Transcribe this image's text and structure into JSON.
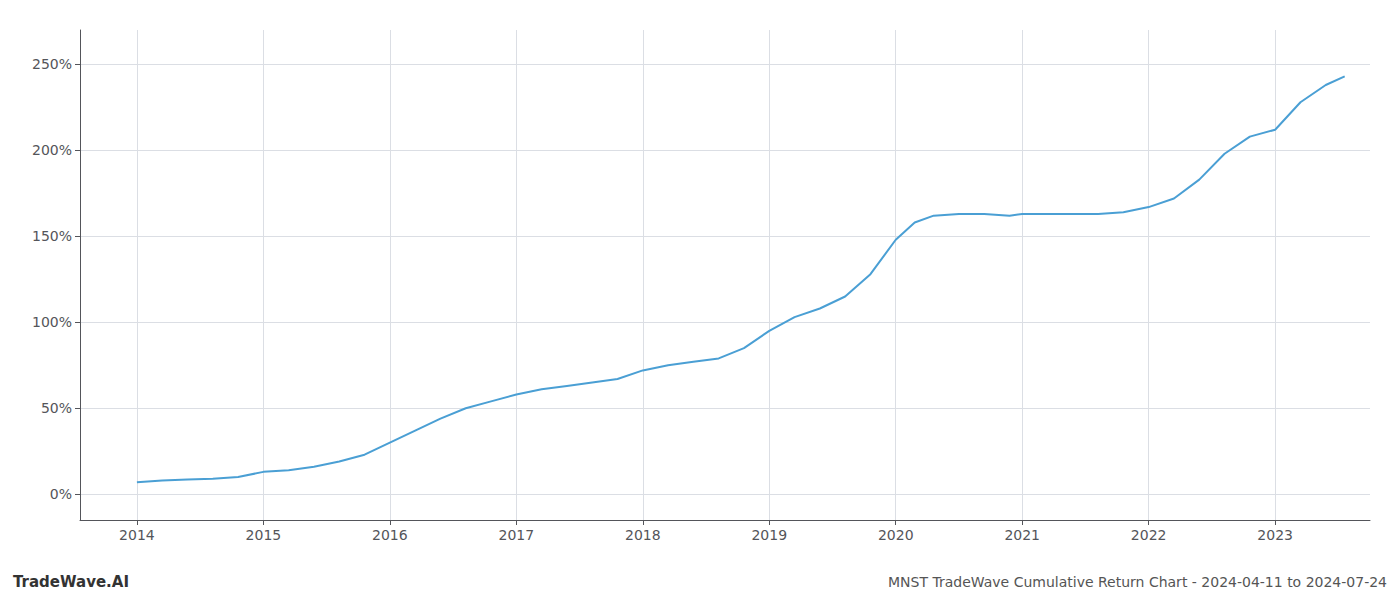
{
  "chart_data": {
    "type": "line",
    "title": "MNST TradeWave Cumulative Return Chart - 2024-04-11 to 2024-07-24",
    "annotations": [
      "TradeWave.AI"
    ],
    "x": [
      2014.0,
      2014.2,
      2014.4,
      2014.6,
      2014.8,
      2015.0,
      2015.2,
      2015.4,
      2015.6,
      2015.8,
      2016.0,
      2016.2,
      2016.4,
      2016.6,
      2016.8,
      2017.0,
      2017.2,
      2017.4,
      2017.6,
      2017.8,
      2018.0,
      2018.2,
      2018.4,
      2018.6,
      2018.8,
      2019.0,
      2019.2,
      2019.4,
      2019.6,
      2019.8,
      2020.0,
      2020.15,
      2020.3,
      2020.5,
      2020.7,
      2020.9,
      2021.0,
      2021.2,
      2021.4,
      2021.6,
      2021.8,
      2022.0,
      2022.2,
      2022.4,
      2022.6,
      2022.8,
      2023.0,
      2023.2,
      2023.4,
      2023.55
    ],
    "values": [
      7,
      8,
      8.5,
      9,
      10,
      13,
      14,
      16,
      19,
      23,
      30,
      37,
      44,
      50,
      54,
      58,
      61,
      63,
      65,
      67,
      72,
      75,
      77,
      79,
      85,
      95,
      103,
      108,
      115,
      128,
      148,
      158,
      162,
      163,
      163,
      162,
      163,
      163,
      163,
      163,
      164,
      167,
      172,
      183,
      198,
      208,
      212,
      228,
      238,
      243
    ],
    "color": "#4a9fd4",
    "xlim": [
      2013.55,
      2023.75
    ],
    "ylim": [
      -15,
      270
    ],
    "xticks": [
      2014,
      2015,
      2016,
      2017,
      2018,
      2019,
      2020,
      2021,
      2022,
      2023
    ],
    "yticks": [
      {
        "value": 0,
        "label": "0%"
      },
      {
        "value": 50,
        "label": "50%"
      },
      {
        "value": 100,
        "label": "100%"
      },
      {
        "value": 150,
        "label": "150%"
      },
      {
        "value": 200,
        "label": "200%"
      },
      {
        "value": 250,
        "label": "250%"
      }
    ],
    "grid": true
  }
}
